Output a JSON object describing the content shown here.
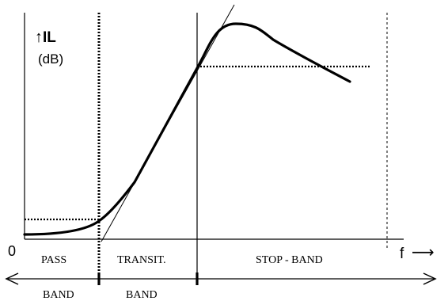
{
  "y_axis": {
    "arrow": "↑",
    "label": "IL",
    "unit": "(dB)"
  },
  "x_axis": {
    "origin": "0",
    "label": "f",
    "arrow": "⟶"
  },
  "regions": {
    "pass": "PASS",
    "transition": "TRANSIT.",
    "stop": "STOP - BAND"
  },
  "bottom_labels": {
    "pass_band": "BAND",
    "transition_band": "BAND"
  }
}
